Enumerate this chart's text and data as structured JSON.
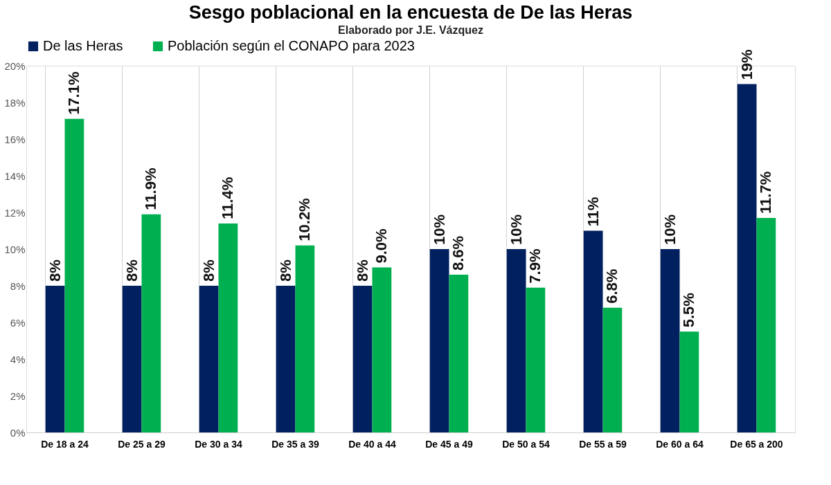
{
  "chart_data": {
    "type": "bar",
    "title": "Sesgo poblacional en la encuesta de De las Heras",
    "subtitle": "Elaborado por J.E. Vázquez",
    "categories": [
      "De 18 a 24",
      "De 25 a 29",
      "De 30 a 34",
      "De 35 a 39",
      "De 40 a 44",
      "De 45 a 49",
      "De 50 a 54",
      "De 55 a 59",
      "De 60 a 64",
      "De 65 a 200"
    ],
    "series": [
      {
        "name": "De las Heras",
        "color": "#002060",
        "values": [
          8,
          8,
          8,
          8,
          8,
          10,
          10,
          11,
          10,
          19
        ],
        "value_labels": [
          "8%",
          "8%",
          "8%",
          "8%",
          "8%",
          "10%",
          "10%",
          "11%",
          "10%",
          "19%"
        ]
      },
      {
        "name": "Población según el CONAPO para 2023",
        "color": "#00b050",
        "values": [
          17.1,
          11.9,
          11.4,
          10.2,
          9.0,
          8.6,
          7.9,
          6.8,
          5.5,
          11.7
        ],
        "value_labels": [
          "17.1%",
          "11.9%",
          "11.4%",
          "10.2%",
          "9.0%",
          "8.6%",
          "7.9%",
          "6.8%",
          "5.5%",
          "11.7%"
        ]
      }
    ],
    "ylim": [
      0,
      20
    ],
    "yticks": [
      {
        "value": 0,
        "label": "0%"
      },
      {
        "value": 2,
        "label": "2%"
      },
      {
        "value": 4,
        "label": "4%"
      },
      {
        "value": 6,
        "label": "6%"
      },
      {
        "value": 8,
        "label": "8%"
      },
      {
        "value": 10,
        "label": "10%"
      },
      {
        "value": 12,
        "label": "12%"
      },
      {
        "value": 14,
        "label": "14%"
      },
      {
        "value": 16,
        "label": "16%"
      },
      {
        "value": 18,
        "label": "18%"
      },
      {
        "value": 20,
        "label": "20%"
      }
    ],
    "grid": "x",
    "legend": "top"
  }
}
